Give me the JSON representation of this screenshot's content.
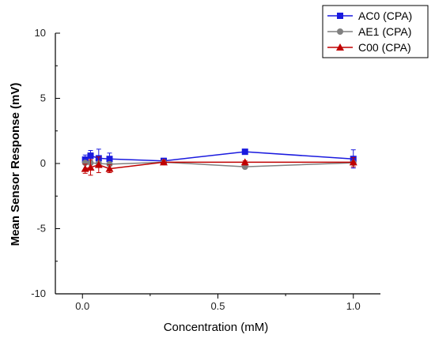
{
  "chart_data": {
    "type": "line",
    "xlabel": "Concentration (mM)",
    "ylabel": "Mean Sensor Response (mV)",
    "xlim": [
      -0.1,
      1.1
    ],
    "ylim": [
      -10,
      10
    ],
    "xticks": [
      0.0,
      0.5,
      1.0
    ],
    "xtick_labels": [
      "0.0",
      "0.5",
      "1.0"
    ],
    "yticks": [
      -10,
      -5,
      0,
      5,
      10
    ],
    "ytick_labels": [
      "-10",
      "-5",
      "0",
      "5",
      "10"
    ],
    "legend_position": "top-right",
    "grid": false,
    "x": [
      0.01,
      0.03,
      0.06,
      0.1,
      0.3,
      0.6,
      1.0
    ],
    "series": [
      {
        "name": "AC0 (CPA)",
        "color": "#1a1adf",
        "marker": "square",
        "values": [
          0.3,
          0.6,
          0.4,
          0.35,
          0.2,
          0.9,
          0.35
        ],
        "errors": [
          0.35,
          0.4,
          0.7,
          0.45,
          0.2,
          0.2,
          0.7
        ]
      },
      {
        "name": "AE1 (CPA)",
        "color": "#808080",
        "marker": "circle",
        "values": [
          0.05,
          0.05,
          0.0,
          -0.05,
          0.1,
          -0.25,
          0.05
        ],
        "errors": [
          0.1,
          0.1,
          0.1,
          0.1,
          0.1,
          0.1,
          0.1
        ]
      },
      {
        "name": "C00 (CPA)",
        "color": "#c00000",
        "marker": "triangle",
        "values": [
          -0.4,
          -0.3,
          -0.1,
          -0.4,
          0.1,
          0.1,
          0.1
        ],
        "errors": [
          0.35,
          0.6,
          0.6,
          0.3,
          0.15,
          0.1,
          0.35
        ]
      }
    ]
  }
}
